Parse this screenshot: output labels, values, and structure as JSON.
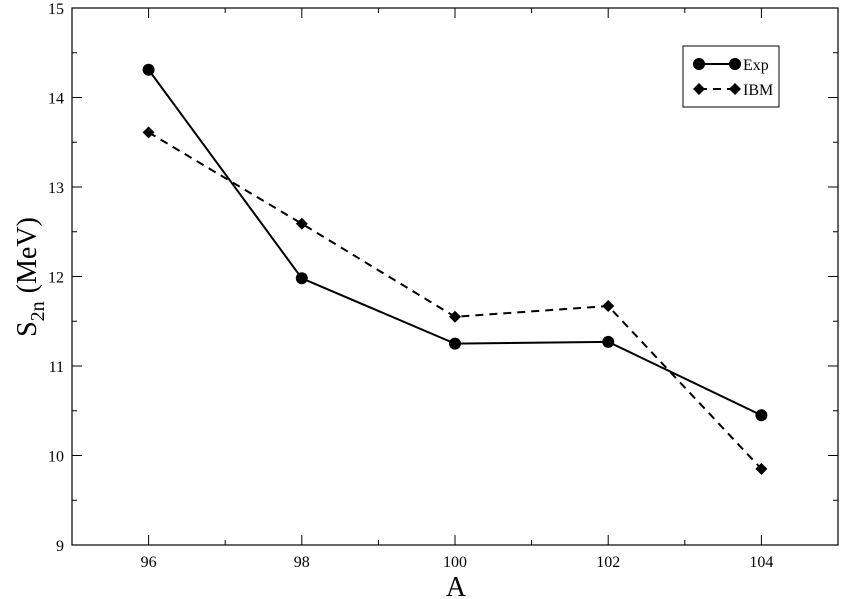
{
  "chart_data": {
    "type": "line",
    "x_label": "A",
    "y_label": "S",
    "y_label_sub": "2n",
    "y_label_unit": "(MeV)",
    "x": [
      96,
      98,
      100,
      102,
      104
    ],
    "series": [
      {
        "name": "Exp",
        "color": "#000000",
        "dash": false,
        "marker": "circle",
        "values": [
          14.31,
          11.98,
          11.25,
          11.27,
          10.45
        ]
      },
      {
        "name": "IBM",
        "color": "#000000",
        "dash": true,
        "marker": "diamond",
        "values": [
          13.61,
          12.59,
          11.55,
          11.67,
          9.85
        ]
      }
    ],
    "xlim": [
      95,
      105
    ],
    "xticks": [
      96,
      98,
      100,
      102,
      104
    ],
    "ylim": [
      9,
      15
    ],
    "yticks": [
      9,
      10,
      11,
      12,
      13,
      14,
      15
    ],
    "legend": "upper right"
  }
}
